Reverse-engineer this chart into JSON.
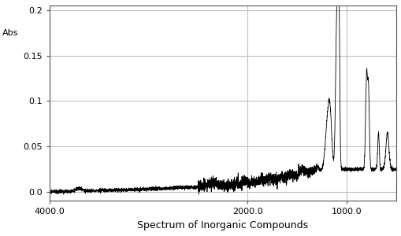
{
  "xlabel": "Spectrum of Inorganic Compounds",
  "ylabel": "Abs",
  "xlim": [
    4000,
    500
  ],
  "ylim": [
    -0.01,
    0.205
  ],
  "yticks": [
    0.0,
    0.05,
    0.1,
    0.15,
    0.2
  ],
  "ytick_labels": [
    "0.0",
    "0.05",
    "0.1",
    "0.15",
    "0.2"
  ],
  "xticks": [
    4000.0,
    2000.0,
    1000.0
  ],
  "xtick_labels": [
    "4000.0",
    "2000.0",
    "1000.0"
  ],
  "bg_color": "#ffffff",
  "line_color": "#000000",
  "grid_color": "#c0c0c0",
  "xlabel_fontsize": 9,
  "tick_fontsize": 8,
  "ylabel_fontsize": 8
}
